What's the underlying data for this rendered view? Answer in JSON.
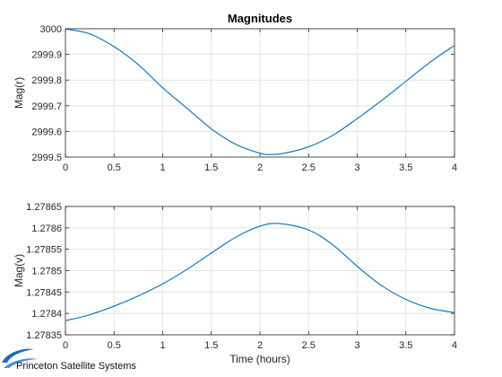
{
  "figure_title": "Magnitudes",
  "logo": {
    "text": "Princeton Satellite Systems",
    "icon": "pss-swoosh-logo"
  },
  "colors": {
    "line": "#0072bd",
    "grid": "#e3e3e3",
    "axis": "#262626"
  },
  "chart_data": [
    {
      "type": "line",
      "title": "Magnitudes",
      "xlabel": "",
      "ylabel": "Mag(r)",
      "xlim": [
        0,
        4
      ],
      "ylim": [
        2999.5,
        3000
      ],
      "xticks": [
        0,
        0.5,
        1,
        1.5,
        2,
        2.5,
        3,
        3.5,
        4
      ],
      "xtick_labels": [
        "0",
        "0.5",
        "1",
        "1.5",
        "2",
        "2.5",
        "3",
        "3.5",
        "4"
      ],
      "yticks": [
        2999.5,
        2999.6,
        2999.7,
        2999.8,
        2999.9,
        3000
      ],
      "ytick_labels": [
        "2999.5",
        "2999.6",
        "2999.7",
        "2999.8",
        "2999.9",
        "3000"
      ],
      "grid": true,
      "series": [
        {
          "x": [
            0,
            0.25,
            0.5,
            0.75,
            1.0,
            1.25,
            1.5,
            1.75,
            2.0,
            2.1,
            2.25,
            2.5,
            2.75,
            3.0,
            3.25,
            3.5,
            3.75,
            4.0
          ],
          "y": [
            2999.999,
            2999.98,
            2999.93,
            2999.86,
            2999.77,
            2999.69,
            2999.61,
            2999.55,
            2999.515,
            2999.51,
            2999.515,
            2999.54,
            2999.585,
            2999.65,
            2999.72,
            2999.795,
            2999.87,
            2999.935
          ]
        }
      ]
    },
    {
      "type": "line",
      "title": "",
      "xlabel": "Time (hours)",
      "ylabel": "Mag(v)",
      "xlim": [
        0,
        4
      ],
      "ylim": [
        1.27835,
        1.27865
      ],
      "xticks": [
        0,
        0.5,
        1,
        1.5,
        2,
        2.5,
        3,
        3.5,
        4
      ],
      "xtick_labels": [
        "0",
        "0.5",
        "1",
        "1.5",
        "2",
        "2.5",
        "3",
        "3.5",
        "4"
      ],
      "yticks": [
        1.27835,
        1.2784,
        1.27845,
        1.2785,
        1.27855,
        1.2786,
        1.27865
      ],
      "ytick_labels": [
        "1.27835",
        "1.2784",
        "1.27845",
        "1.2785",
        "1.27855",
        "1.2786",
        "1.27865"
      ],
      "grid": true,
      "series": [
        {
          "x": [
            0,
            0.25,
            0.5,
            0.75,
            1.0,
            1.25,
            1.5,
            1.75,
            2.0,
            2.2,
            2.5,
            2.75,
            3.0,
            3.25,
            3.5,
            3.75,
            4.0
          ],
          "y": [
            1.278383,
            1.278397,
            1.278417,
            1.278441,
            1.278469,
            1.278503,
            1.278541,
            1.278578,
            1.278604,
            1.27861,
            1.278595,
            1.27856,
            1.27851,
            1.278465,
            1.278433,
            1.278412,
            1.278402
          ]
        }
      ]
    }
  ]
}
